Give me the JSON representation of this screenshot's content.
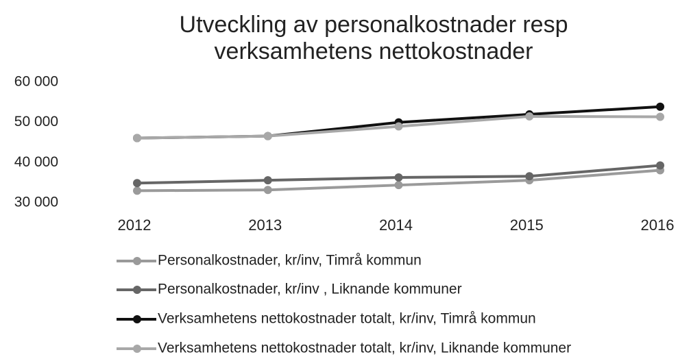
{
  "chart_data": {
    "type": "line",
    "title": [
      "Utveckling av personalkostnader resp",
      "verksamhetens nettokostnader"
    ],
    "categories": [
      "2012",
      "2013",
      "2014",
      "2015",
      "2016"
    ],
    "series": [
      {
        "name": "Personalkostnader, kr/inv, Timrå kommun",
        "color": "#9a9a9a",
        "values": [
          33000,
          33200,
          34400,
          35600,
          38100
        ]
      },
      {
        "name": "Personalkostnader, kr/inv , Liknande kommuner",
        "color": "#666666",
        "values": [
          34900,
          35600,
          36300,
          36600,
          39300
        ]
      },
      {
        "name": "Verksamhetens nettokostnader totalt, kr/inv, Timrå kommun",
        "color": "#111111",
        "values": [
          46100,
          46600,
          50000,
          52000,
          53900
        ]
      },
      {
        "name": "Verksamhetens nettokostnader totalt, kr/inv, Liknande kommuner",
        "color": "#a8a8a8",
        "values": [
          46100,
          46600,
          49000,
          51500,
          51400
        ]
      }
    ],
    "ylim": [
      30000,
      60000
    ],
    "yticks": [
      {
        "value": 30000,
        "label": "30 000"
      },
      {
        "value": 40000,
        "label": "40 000"
      },
      {
        "value": 50000,
        "label": "50 000"
      },
      {
        "value": 60000,
        "label": "60 000"
      }
    ],
    "grid": false
  }
}
